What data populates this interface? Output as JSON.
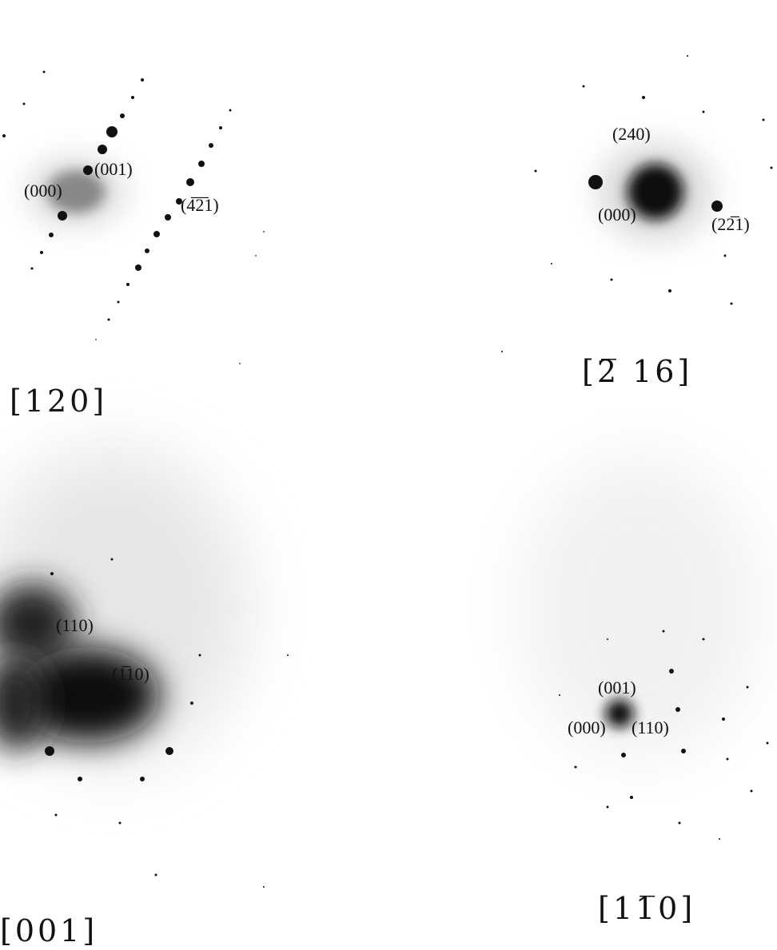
{
  "panels": [
    {
      "zone_axis": "[120]",
      "spot_labels": [
        "(000)",
        "(001)",
        "(4̅2̅1)"
      ]
    },
    {
      "zone_axis": "[2̅ 16]",
      "spot_labels": [
        "(240)",
        "(000)",
        "(22̅1)"
      ]
    },
    {
      "zone_axis": "[001]",
      "spot_labels": [
        "(110)",
        "(1̅10)"
      ]
    },
    {
      "zone_axis": "[11̅0]",
      "spot_labels": [
        "(001)",
        "(000)",
        "(110)"
      ]
    }
  ]
}
